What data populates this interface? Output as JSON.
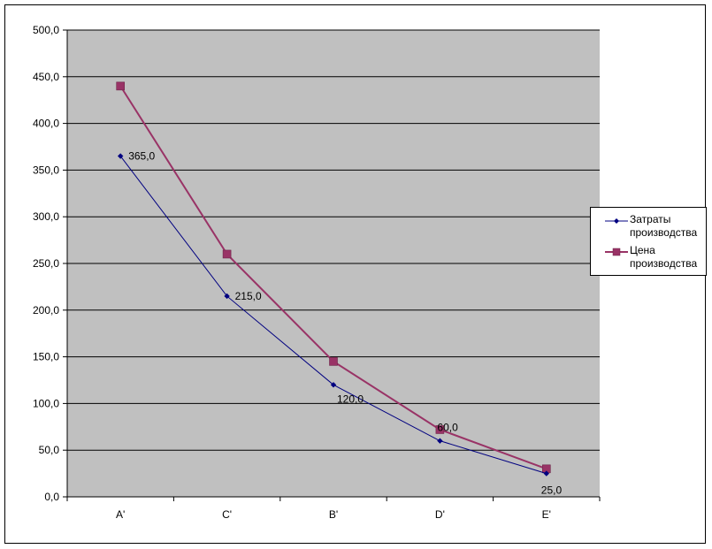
{
  "chart_data": {
    "type": "line",
    "categories": [
      "A'",
      "C'",
      "B'",
      "D'",
      "E'"
    ],
    "ylim": [
      0,
      500
    ],
    "y_tick_step": 50,
    "y_tick_labels": [
      "0,0",
      "50,0",
      "100,0",
      "150,0",
      "200,0",
      "250,0",
      "300,0",
      "350,0",
      "400,0",
      "450,0",
      "500,0"
    ],
    "grid": true,
    "legend_position": "right",
    "plot_background": "#c0c0c0",
    "series": [
      {
        "name": "Затраты производства",
        "legend_lines": [
          "Затраты",
          "производства"
        ],
        "values": [
          365,
          215,
          120,
          60,
          25
        ],
        "data_labels": [
          "365,0",
          "215,0",
          "120,0",
          "60,0",
          "25,0"
        ],
        "color": "#000080",
        "marker": "diamond"
      },
      {
        "name": "Цена производства",
        "legend_lines": [
          "Цена",
          "производства"
        ],
        "values": [
          440,
          260,
          145,
          72,
          30
        ],
        "color": "#993366",
        "marker": "square"
      }
    ]
  }
}
